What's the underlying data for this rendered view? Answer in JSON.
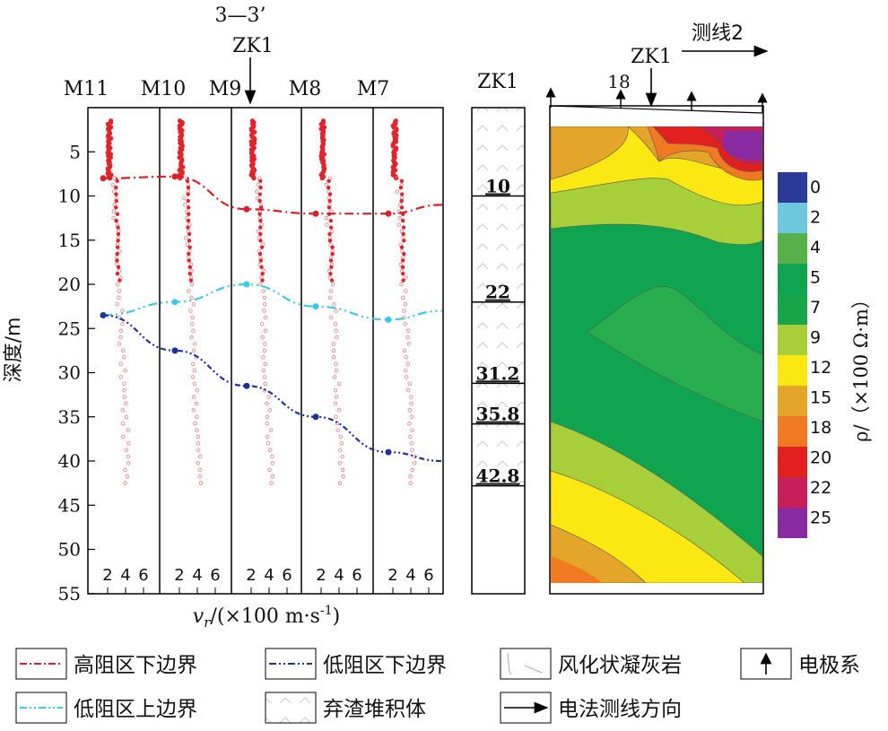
{
  "velocity_panel": {
    "section_label": "3—3’",
    "borehole_marker": "ZK1",
    "columns": [
      "M11",
      "M10",
      "M9",
      "M8",
      "M7"
    ],
    "column_tick_labels": [
      "2",
      "4",
      "6"
    ],
    "ylabel": "深度/m",
    "xlabel_prefix": "v",
    "xlabel_sub": "r",
    "xlabel_suffix": "/(×100 m·s",
    "xlabel_sup": "-1",
    "xlabel_close": ")"
  },
  "borehole": {
    "title": "ZK1",
    "layer_bottoms": [
      "10",
      "22",
      "31.2",
      "35.8",
      "42.8"
    ]
  },
  "resistivity_panel": {
    "line_label": "测线2",
    "borehole_label": "ZK1",
    "electrode_label": "18",
    "colorbar_ticks": [
      "0",
      "2",
      "4",
      "5",
      "7",
      "9",
      "12",
      "15",
      "18",
      "20",
      "22",
      "25"
    ],
    "colorbar_colors": [
      "#2b3a9a",
      "#6cc7df",
      "#57b04a",
      "#0fa550",
      "#17a54a",
      "#a6cf3a",
      "#fbe712",
      "#e5a42a",
      "#f07a22",
      "#e2201f",
      "#c61f5a",
      "#8a2aa0"
    ],
    "colorbar_label": "ρ/（×100 Ω·m）"
  },
  "legend": [
    {
      "label": "高阻区下边界",
      "color": "#d8202a"
    },
    {
      "label": "低阻区下边界",
      "color": "#22309a"
    },
    {
      "label": "风化状凝灰岩",
      "color": "#999999"
    },
    {
      "label": "电极系",
      "color": "#000000"
    },
    {
      "label": "低阻区上边界",
      "color": "#3cc8e6"
    },
    {
      "label": "弃渣堆积体",
      "color": "#999999"
    },
    {
      "label": "电法测线方向",
      "color": "#000000"
    }
  ],
  "chart_data": {
    "type": "line",
    "title": "",
    "ylabel": "深度/m",
    "xlabel": "vr/(×100 m·s-1)",
    "ylim": [
      55,
      0
    ],
    "yticks": [
      5,
      10,
      15,
      20,
      25,
      30,
      35,
      40,
      45,
      50,
      55
    ],
    "x_categories": [
      "M11",
      "M10",
      "M9",
      "M8",
      "M7"
    ],
    "series": [
      {
        "name": "高阻区下边界",
        "x": [
          0,
          1,
          2,
          3,
          4,
          4.3
        ],
        "depth": [
          8,
          7.8,
          11.5,
          12,
          12,
          11
        ]
      },
      {
        "name": "低阻区上边界",
        "x": [
          0,
          1,
          2,
          3,
          4,
          4.3
        ],
        "depth": [
          23.5,
          22,
          20,
          22.5,
          24,
          23
        ]
      },
      {
        "name": "低阻区下边界",
        "x": [
          0,
          1,
          2,
          3,
          4,
          4.3
        ],
        "depth": [
          23.5,
          27.5,
          31.5,
          35,
          39,
          40
        ]
      }
    ]
  }
}
